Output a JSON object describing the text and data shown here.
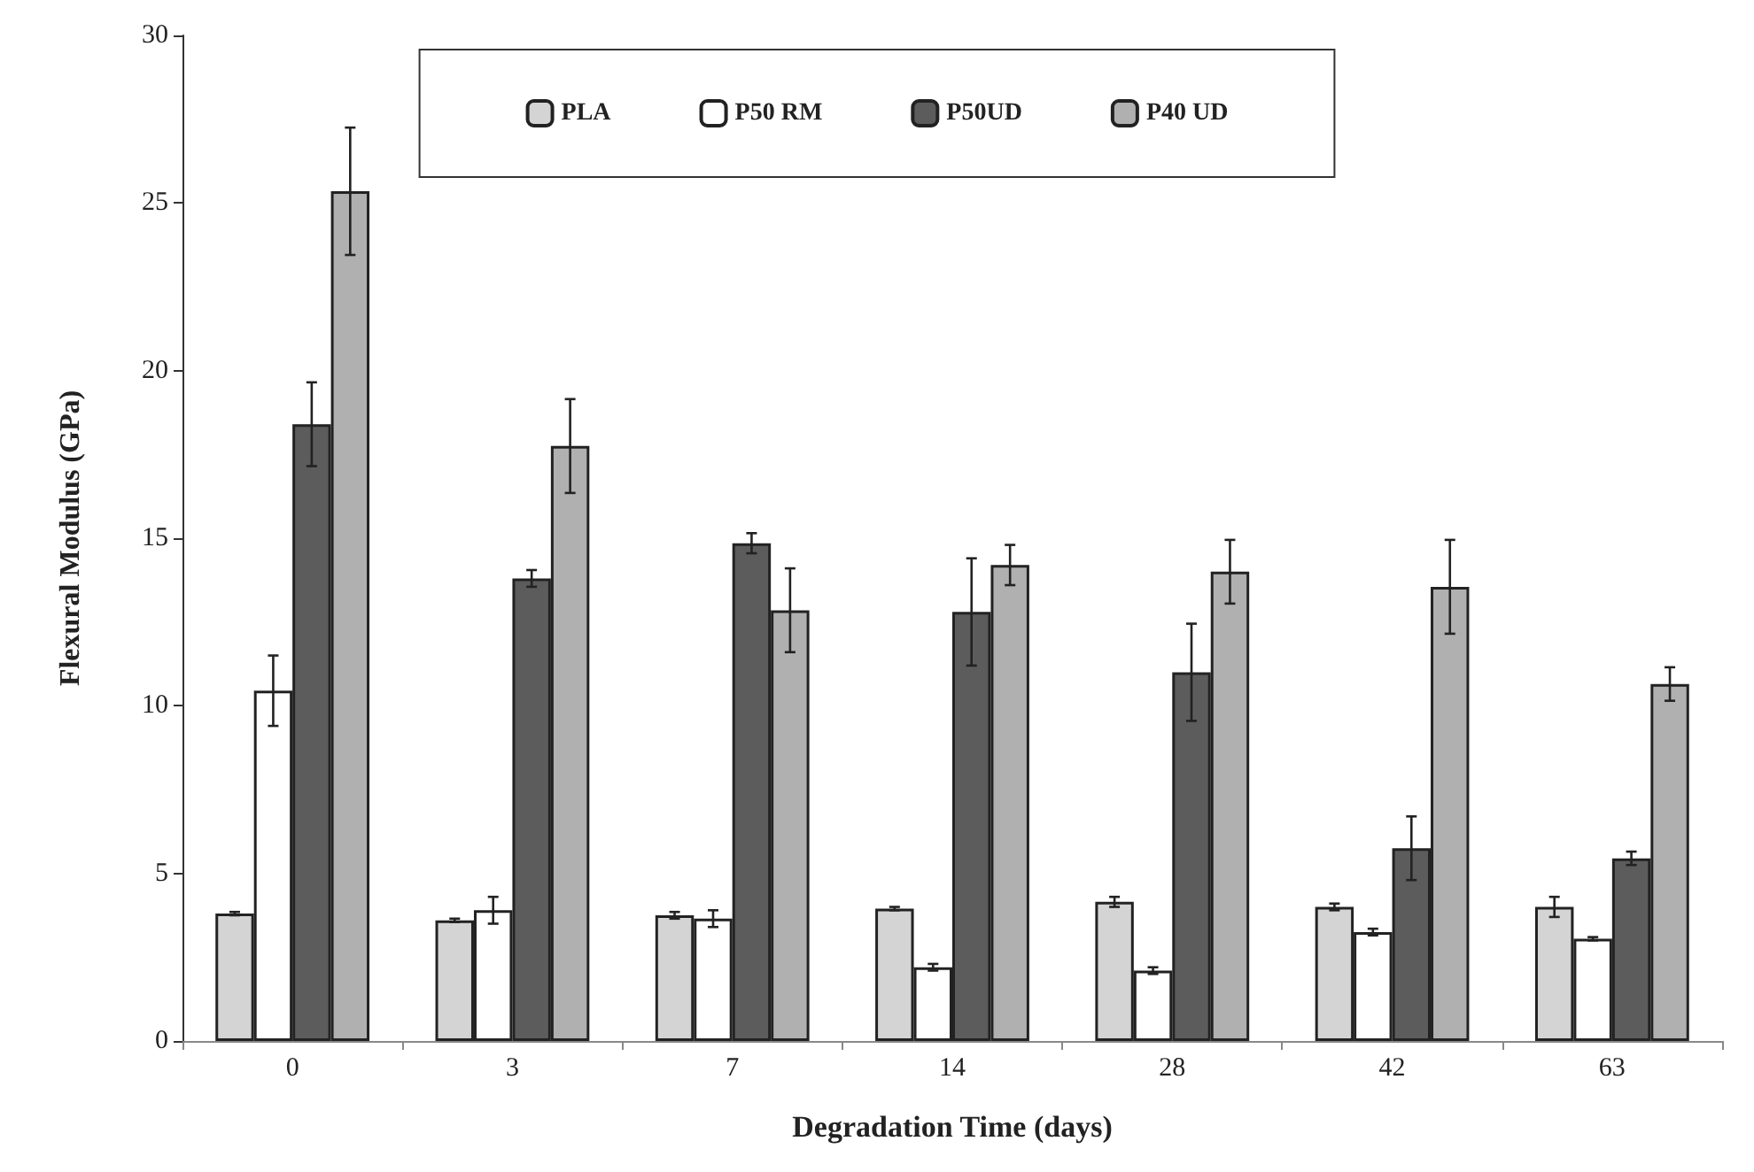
{
  "chart_data": {
    "type": "bar",
    "xlabel": "Degradation Time (days)",
    "ylabel": "Flexural Modulus (GPa)",
    "categories": [
      "0",
      "3",
      "7",
      "14",
      "28",
      "42",
      "63"
    ],
    "series": [
      {
        "name": "PLA",
        "color": "#d4d4d4",
        "values": [
          3.8,
          3.6,
          3.75,
          3.95,
          4.15,
          4.0,
          4.0
        ],
        "errors": [
          0.05,
          0.05,
          0.1,
          0.05,
          0.15,
          0.1,
          0.3
        ]
      },
      {
        "name": "P50 RM",
        "color": "#ffffff",
        "values": [
          10.45,
          3.9,
          3.65,
          2.2,
          2.1,
          3.25,
          3.05
        ],
        "errors": [
          1.05,
          0.4,
          0.25,
          0.1,
          0.1,
          0.1,
          0.05
        ]
      },
      {
        "name": "P50UD",
        "color": "#5c5c5c",
        "values": [
          18.4,
          13.8,
          14.85,
          12.8,
          11.0,
          5.75,
          5.45
        ],
        "errors": [
          1.25,
          0.25,
          0.3,
          1.6,
          1.45,
          0.95,
          0.2
        ]
      },
      {
        "name": "P40 UD",
        "color": "#b0b0b0",
        "values": [
          25.35,
          17.75,
          12.85,
          14.2,
          14.0,
          13.55,
          10.65
        ],
        "errors": [
          1.9,
          1.4,
          1.25,
          0.6,
          0.95,
          1.4,
          0.5
        ]
      }
    ],
    "ylim": [
      0,
      30
    ],
    "yticks": [
      0,
      5,
      10,
      15,
      20,
      25,
      30
    ],
    "grid": false,
    "legend": "top"
  }
}
